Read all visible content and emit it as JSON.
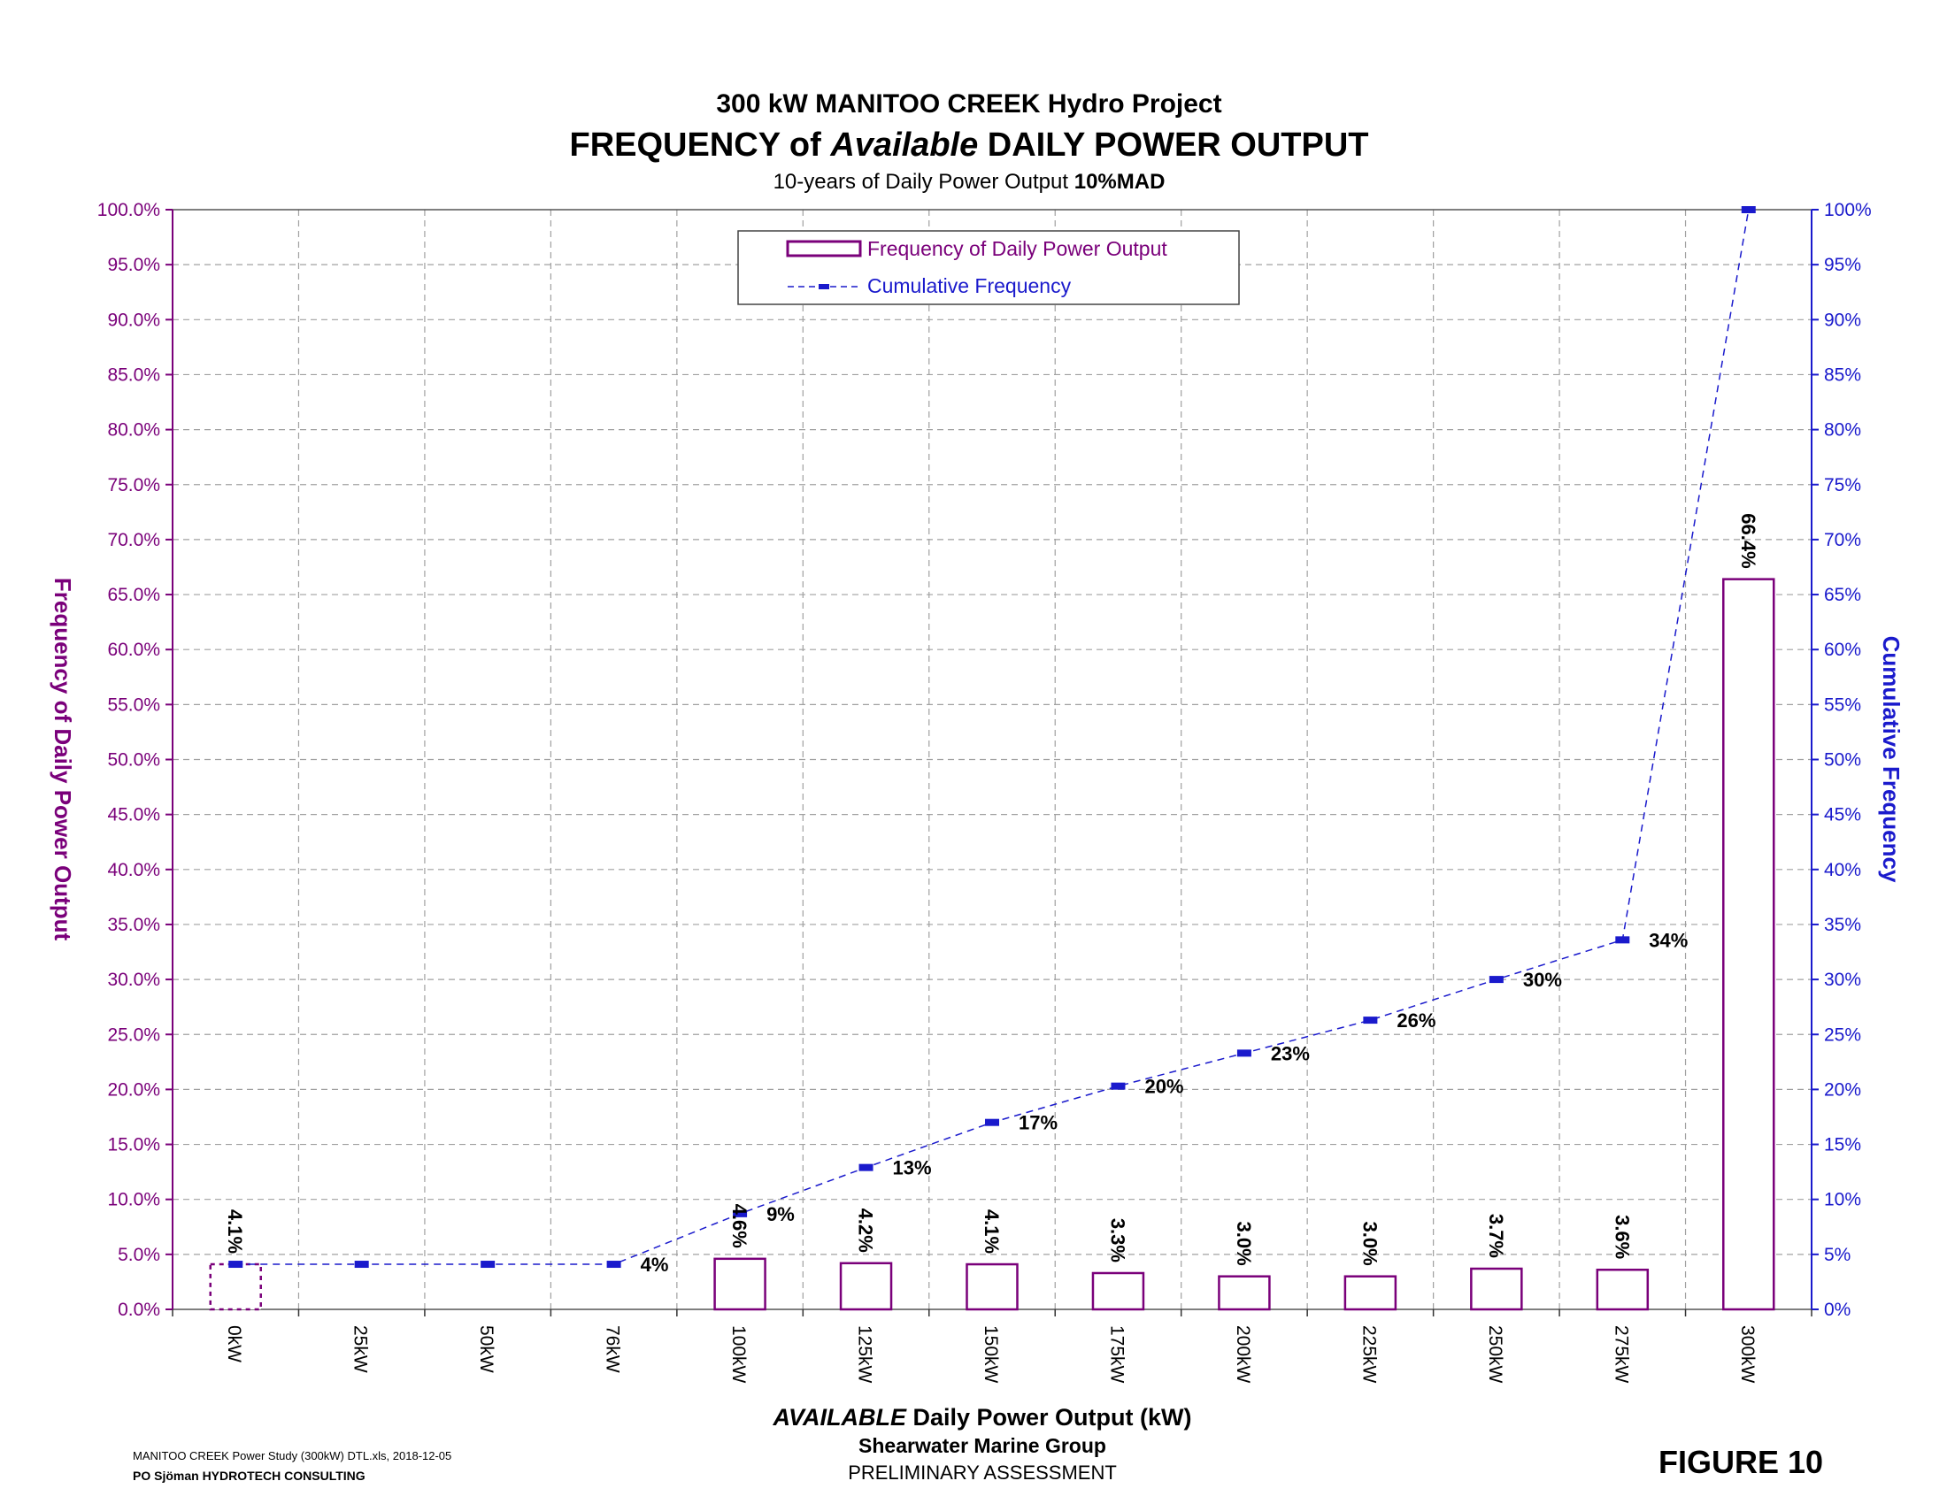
{
  "title_line1": "300 kW MANITOO CREEK Hydro Project",
  "title_line2_pre": "FREQUENCY of ",
  "title_line2_italic": "Available",
  "title_line2_post": " DAILY POWER OUTPUT",
  "subtitle_pre": "10-years of Daily Power Output ",
  "subtitle_bold": "10%MAD",
  "xlabel_italic": "AVAILABLE",
  "xlabel_rest": " Daily Power Output (kW)",
  "footer_org": "Shearwater Marine Group",
  "footer_status": "PRELIMINARY ASSESSMENT",
  "file_note": "MANITOO CREEK Power Study (300kW) DTL.xls, 2018-12-05",
  "consultant": "PO Sjöman HYDROTECH CONSULTING",
  "figure_label": "FIGURE 10",
  "colors": {
    "frequency": "#7a007a",
    "cumulative": "#1a1acc",
    "grid": "#a0a0a0"
  },
  "chart_data": {
    "type": "bar",
    "categories": [
      "0kW",
      "25kW",
      "50kW",
      "76kW",
      "100kW",
      "125kW",
      "150kW",
      "175kW",
      "200kW",
      "225kW",
      "250kW",
      "275kW",
      "300kW"
    ],
    "series": [
      {
        "name": "Frequency of Daily Power Output",
        "type": "bar",
        "axis": "left",
        "values": [
          4.1,
          0,
          0,
          0,
          4.6,
          4.2,
          4.1,
          3.3,
          3.0,
          3.0,
          3.7,
          3.6,
          66.4
        ],
        "labels": [
          "4.1%",
          "",
          "",
          "",
          "4.6%",
          "4.2%",
          "4.1%",
          "3.3%",
          "3.0%",
          "3.0%",
          "3.7%",
          "3.6%",
          "66.4%"
        ]
      },
      {
        "name": "Cumulative Frequency",
        "type": "line",
        "axis": "right",
        "values": [
          4.1,
          4.1,
          4.1,
          4.1,
          8.7,
          12.9,
          17.0,
          20.3,
          23.3,
          26.3,
          30.0,
          33.6,
          100.0
        ],
        "labels": [
          "",
          "",
          "",
          "4%",
          "9%",
          "13%",
          "17%",
          "20%",
          "23%",
          "26%",
          "30%",
          "34%",
          ""
        ]
      }
    ],
    "ylabel_left": "Frequency of Daily Power Output",
    "ylabel_right": "Cumulative Frequency",
    "ylim": [
      0,
      100
    ],
    "y_ticks": [
      0,
      5,
      10,
      15,
      20,
      25,
      30,
      35,
      40,
      45,
      50,
      55,
      60,
      65,
      70,
      75,
      80,
      85,
      90,
      95,
      100
    ],
    "y_tick_labels_left": [
      "0.0%",
      "5.0%",
      "10.0%",
      "15.0%",
      "20.0%",
      "25.0%",
      "30.0%",
      "35.0%",
      "40.0%",
      "45.0%",
      "50.0%",
      "55.0%",
      "60.0%",
      "65.0%",
      "70.0%",
      "75.0%",
      "80.0%",
      "85.0%",
      "90.0%",
      "95.0%",
      "100.0%"
    ],
    "y_tick_labels_right": [
      "0%",
      "5%",
      "10%",
      "15%",
      "20%",
      "25%",
      "30%",
      "35%",
      "40%",
      "45%",
      "50%",
      "55%",
      "60%",
      "65%",
      "70%",
      "75%",
      "80%",
      "85%",
      "90%",
      "95%",
      "100%"
    ],
    "grid": true,
    "legend": "top-center"
  }
}
